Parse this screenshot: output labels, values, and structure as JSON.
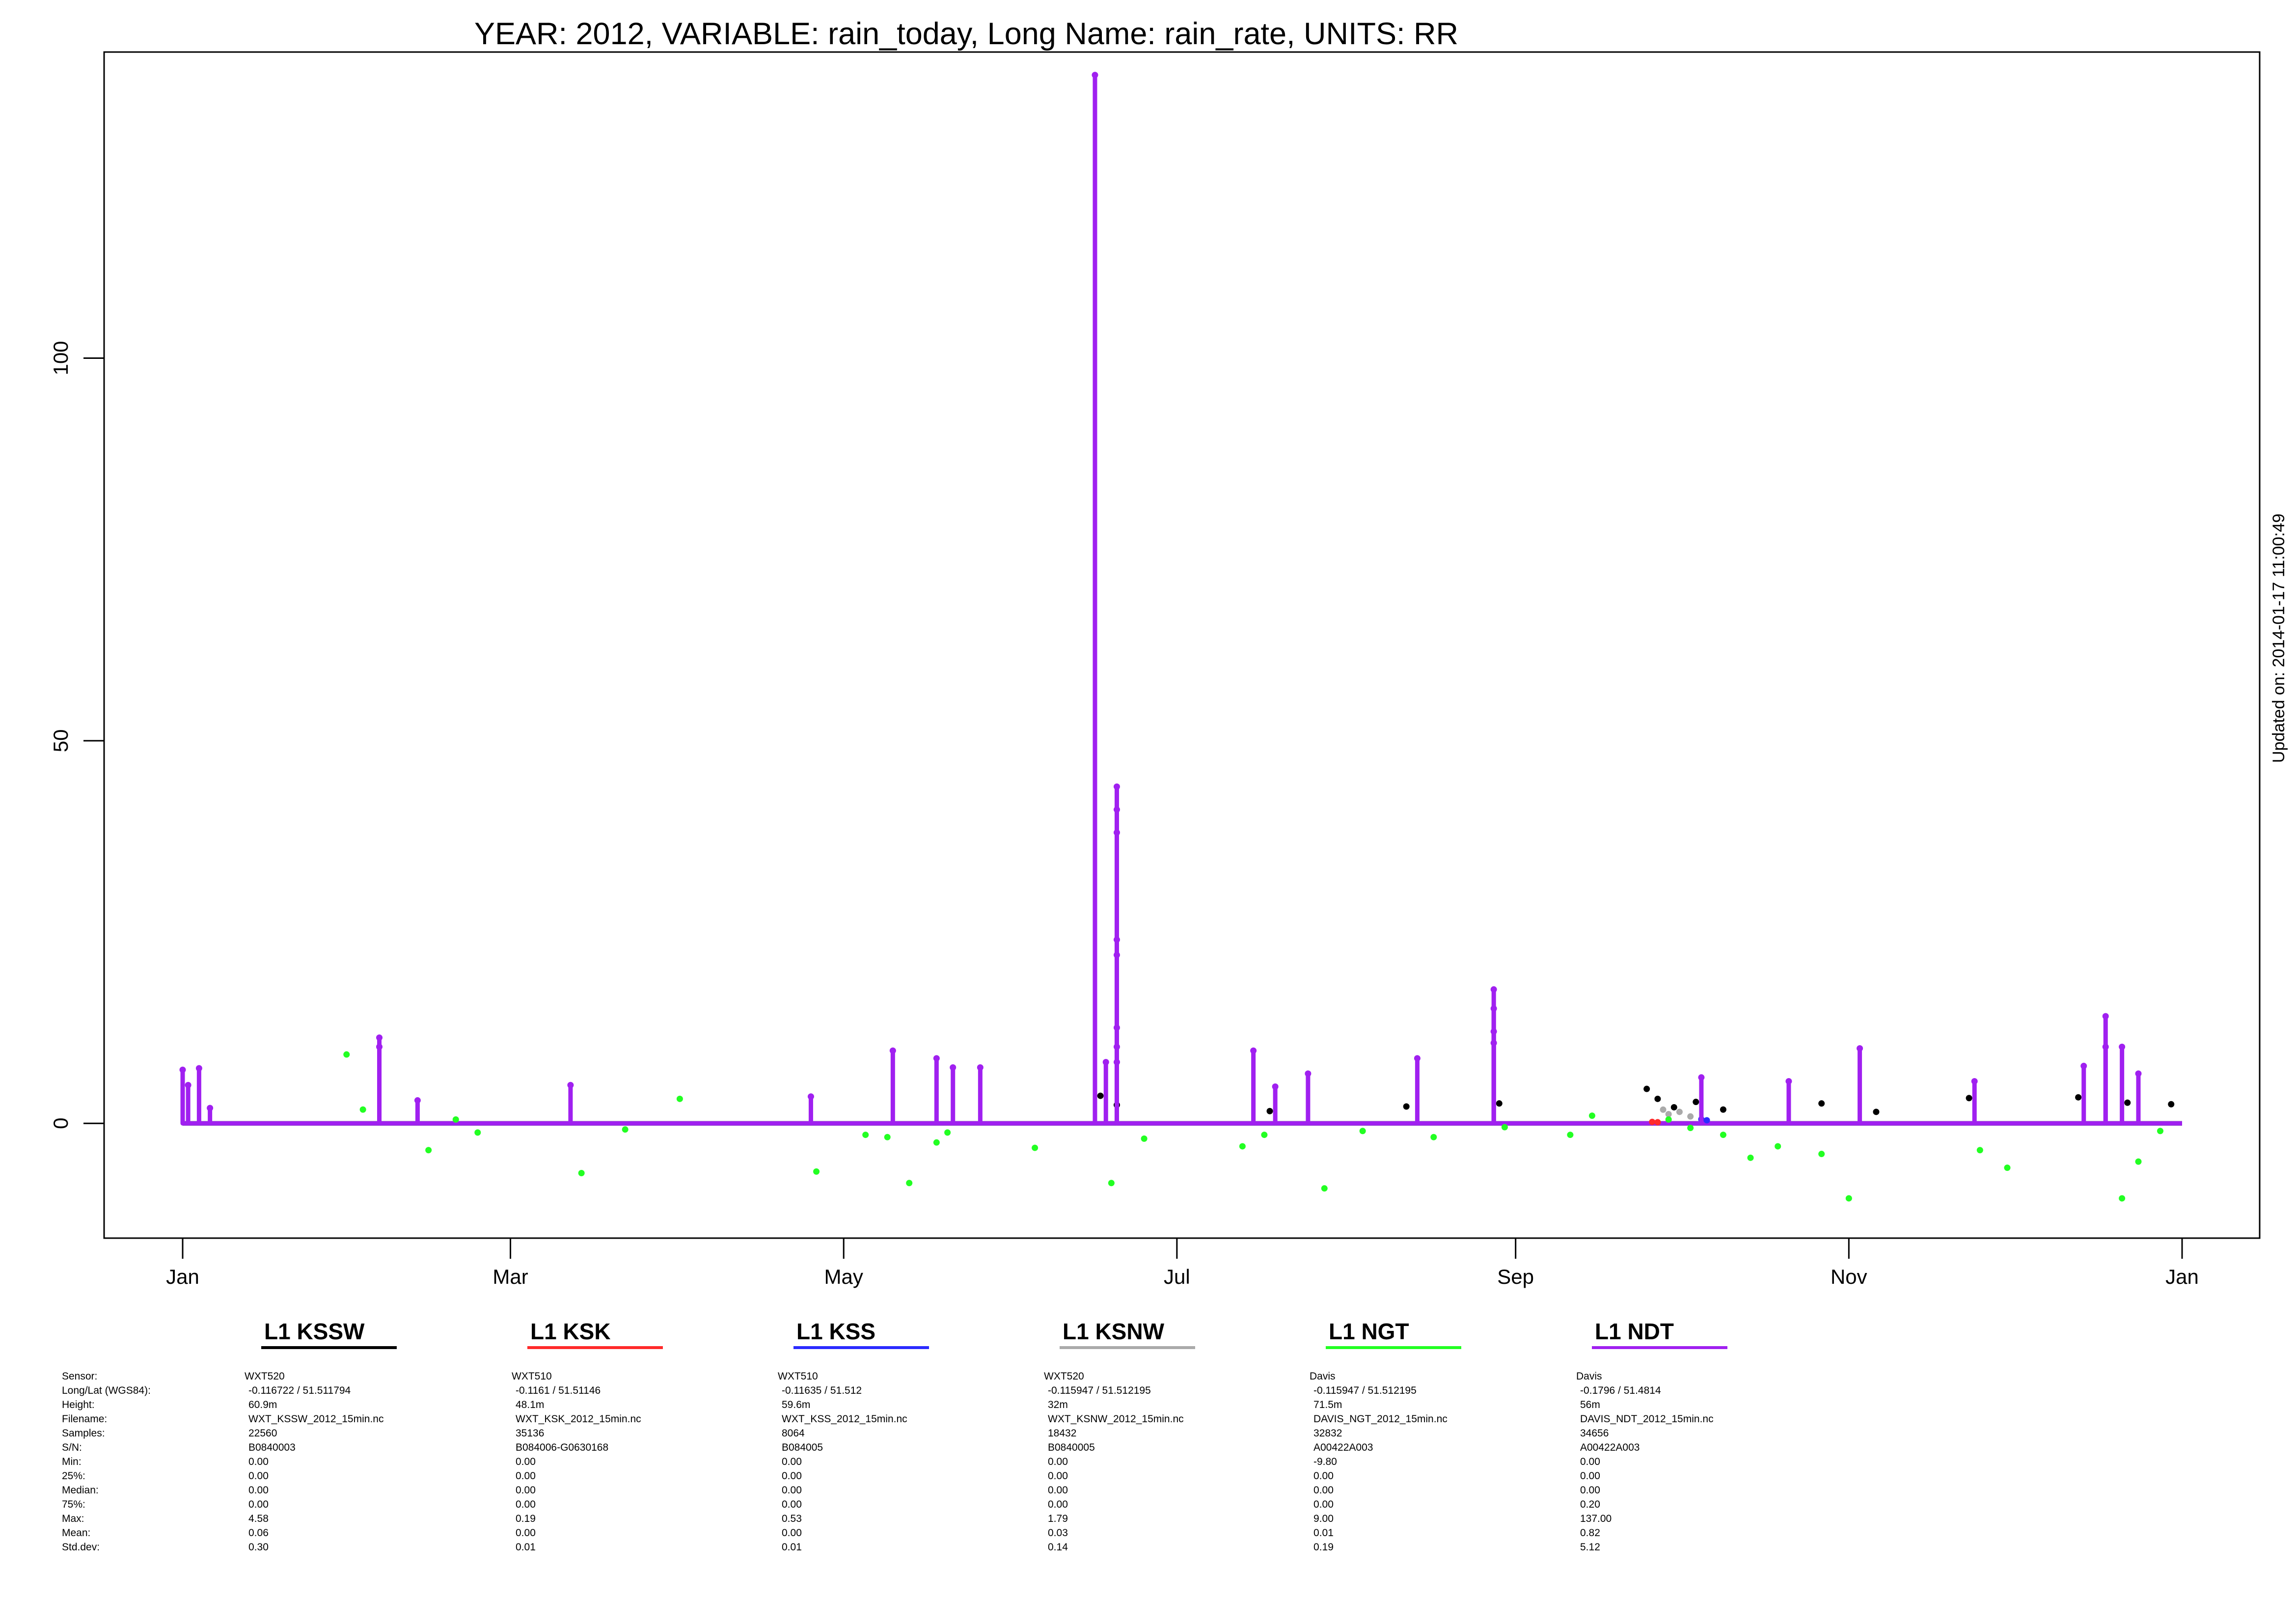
{
  "chart_data": {
    "type": "scatter",
    "title": "YEAR: 2012, VARIABLE: rain_today, Long Name: rain_rate, UNITS: RR",
    "xlabel": "",
    "ylabel": "",
    "xlim": [
      "2012-01-01",
      "2013-01-01"
    ],
    "ylim": [
      -15,
      140
    ],
    "x_ticks": [
      {
        "date": "2012-01-01",
        "label": "Jan"
      },
      {
        "date": "2012-03-01",
        "label": "Mar"
      },
      {
        "date": "2012-05-01",
        "label": "May"
      },
      {
        "date": "2012-07-01",
        "label": "Jul"
      },
      {
        "date": "2012-09-01",
        "label": "Sep"
      },
      {
        "date": "2012-11-01",
        "label": "Nov"
      },
      {
        "date": "2013-01-01",
        "label": "Jan"
      }
    ],
    "y_ticks": [
      0,
      50,
      100
    ],
    "grid": false,
    "updated": "Updated on: 2014-01-17 11:00:49",
    "series": [
      {
        "name": "L1 KSSW",
        "color": "#000000",
        "points": [
          [
            "2012-06-17",
            3.6
          ],
          [
            "2012-06-20",
            2.4
          ],
          [
            "2012-07-18",
            1.6
          ],
          [
            "2012-08-12",
            2.2
          ],
          [
            "2012-08-29",
            2.6
          ],
          [
            "2012-09-25",
            4.5
          ],
          [
            "2012-09-27",
            3.2
          ],
          [
            "2012-09-30",
            2.1
          ],
          [
            "2012-10-04",
            2.8
          ],
          [
            "2012-10-09",
            1.8
          ],
          [
            "2012-10-27",
            2.6
          ],
          [
            "2012-11-06",
            1.5
          ],
          [
            "2012-11-23",
            3.3
          ],
          [
            "2012-12-13",
            3.4
          ],
          [
            "2012-12-22",
            2.7
          ],
          [
            "2012-12-30",
            2.5
          ]
        ]
      },
      {
        "name": "L1 KSK",
        "color": "#ff2a2a",
        "points": [
          [
            "2012-09-26",
            0.19
          ],
          [
            "2012-09-27",
            0.15
          ]
        ]
      },
      {
        "name": "L1 KSS",
        "color": "#2b2bff",
        "points": [
          [
            "2012-10-05",
            0.53
          ],
          [
            "2012-10-06",
            0.4
          ]
        ]
      },
      {
        "name": "L1 KSNW",
        "color": "#aaaaaa",
        "points": [
          [
            "2012-09-28",
            1.79
          ],
          [
            "2012-09-29",
            1.2
          ],
          [
            "2012-10-01",
            1.5
          ],
          [
            "2012-10-03",
            0.9
          ]
        ]
      },
      {
        "name": "L1 NGT",
        "color": "#22ff22",
        "points": [
          [
            "2012-01-31",
            9.0
          ],
          [
            "2012-02-03",
            1.8
          ],
          [
            "2012-02-15",
            -3.5
          ],
          [
            "2012-02-20",
            0.5
          ],
          [
            "2012-02-24",
            -1.2
          ],
          [
            "2012-03-14",
            -6.5
          ],
          [
            "2012-03-22",
            -0.8
          ],
          [
            "2012-04-01",
            3.2
          ],
          [
            "2012-04-26",
            -6.3
          ],
          [
            "2012-05-05",
            -1.5
          ],
          [
            "2012-05-09",
            -1.8
          ],
          [
            "2012-05-13",
            -7.8
          ],
          [
            "2012-05-18",
            -2.5
          ],
          [
            "2012-05-20",
            -1.2
          ],
          [
            "2012-06-05",
            -3.2
          ],
          [
            "2012-06-19",
            -7.8
          ],
          [
            "2012-06-25",
            -2.0
          ],
          [
            "2012-07-13",
            -3.0
          ],
          [
            "2012-07-17",
            -1.5
          ],
          [
            "2012-07-28",
            -8.5
          ],
          [
            "2012-08-04",
            -1.0
          ],
          [
            "2012-08-17",
            -1.8
          ],
          [
            "2012-08-30",
            -0.5
          ],
          [
            "2012-09-11",
            -1.5
          ],
          [
            "2012-09-15",
            1.0
          ],
          [
            "2012-09-29",
            0.5
          ],
          [
            "2012-10-03",
            -0.6
          ],
          [
            "2012-10-09",
            -1.5
          ],
          [
            "2012-10-14",
            -4.5
          ],
          [
            "2012-10-19",
            -3.0
          ],
          [
            "2012-10-27",
            -4.0
          ],
          [
            "2012-11-01",
            -9.8
          ],
          [
            "2012-11-25",
            -3.5
          ],
          [
            "2012-11-30",
            -5.8
          ],
          [
            "2012-12-21",
            -9.8
          ],
          [
            "2012-12-24",
            -5.0
          ],
          [
            "2012-12-28",
            -1.0
          ]
        ]
      },
      {
        "name": "L1 NDT",
        "color": "#a020f0",
        "points": [
          [
            "2012-01-01",
            7.0
          ],
          [
            "2012-01-02",
            5.0
          ],
          [
            "2012-01-04",
            7.2
          ],
          [
            "2012-01-06",
            2.0
          ],
          [
            "2012-02-06",
            11.2
          ],
          [
            "2012-02-06",
            10.0
          ],
          [
            "2012-02-13",
            3.0
          ],
          [
            "2012-03-12",
            5.0
          ],
          [
            "2012-04-25",
            3.5
          ],
          [
            "2012-05-10",
            9.5
          ],
          [
            "2012-05-18",
            8.5
          ],
          [
            "2012-05-21",
            7.3
          ],
          [
            "2012-05-26",
            7.3
          ],
          [
            "2012-06-16",
            137.0
          ],
          [
            "2012-06-18",
            8.0
          ],
          [
            "2012-06-20",
            8.0
          ],
          [
            "2012-06-20",
            44.0
          ],
          [
            "2012-06-20",
            41.0
          ],
          [
            "2012-06-20",
            38.0
          ],
          [
            "2012-06-20",
            24.0
          ],
          [
            "2012-06-20",
            22.0
          ],
          [
            "2012-06-20",
            12.5
          ],
          [
            "2012-06-20",
            10.0
          ],
          [
            "2012-07-15",
            9.5
          ],
          [
            "2012-07-19",
            4.8
          ],
          [
            "2012-07-25",
            6.5
          ],
          [
            "2012-08-14",
            8.5
          ],
          [
            "2012-08-28",
            17.5
          ],
          [
            "2012-08-28",
            15.0
          ],
          [
            "2012-08-28",
            12.0
          ],
          [
            "2012-08-28",
            10.5
          ],
          [
            "2012-10-05",
            6.0
          ],
          [
            "2012-10-21",
            5.5
          ],
          [
            "2012-11-03",
            9.8
          ],
          [
            "2012-11-24",
            5.5
          ],
          [
            "2012-12-14",
            7.5
          ],
          [
            "2012-12-18",
            14.0
          ],
          [
            "2012-12-18",
            10.0
          ],
          [
            "2012-12-21",
            10.0
          ],
          [
            "2012-12-24",
            6.5
          ]
        ]
      }
    ]
  },
  "legend": [
    {
      "name": "L1 KSSW",
      "color": "#000000"
    },
    {
      "name": "L1 KSK",
      "color": "#ff2a2a"
    },
    {
      "name": "L1 KSS",
      "color": "#2b2bff"
    },
    {
      "name": "L1 KSNW",
      "color": "#aaaaaa"
    },
    {
      "name": "L1 NGT",
      "color": "#22ff22"
    },
    {
      "name": "L1 NDT",
      "color": "#a020f0"
    }
  ],
  "info_labels": [
    "Sensor:",
    "Long/Lat (WGS84):",
    "Height:",
    "Filename:",
    "Samples:",
    "S/N:",
    "Min:",
    "25%:",
    "Median:",
    "75%:",
    "Max:",
    "Mean:",
    "Std.dev:"
  ],
  "stations": [
    {
      "sensor": "WXT520",
      "longlat": " -0.116722 / 51.511794",
      "height": "60.9m",
      "filename": "WXT_KSSW_2012_15min.nc",
      "samples": "22560",
      "sn": "B0840003",
      "min": "0.00",
      "p25": "0.00",
      "median": "0.00",
      "p75": "0.00",
      "max": "4.58",
      "mean": "0.06",
      "std": "0.30"
    },
    {
      "sensor": "WXT510",
      "longlat": " -0.1161 / 51.51146",
      "height": "48.1m",
      "filename": "WXT_KSK_2012_15min.nc",
      "samples": "35136",
      "sn": "B084006-G0630168",
      "min": "0.00",
      "p25": "0.00",
      "median": "0.00",
      "p75": "0.00",
      "max": "0.19",
      "mean": "0.00",
      "std": "0.01"
    },
    {
      "sensor": "WXT510",
      "longlat": " -0.11635 / 51.512",
      "height": "59.6m",
      "filename": "WXT_KSS_2012_15min.nc",
      "samples": "8064",
      "sn": "B084005",
      "min": "0.00",
      "p25": "0.00",
      "median": "0.00",
      "p75": "0.00",
      "max": "0.53",
      "mean": "0.00",
      "std": "0.01"
    },
    {
      "sensor": "WXT520",
      "longlat": " -0.115947 / 51.512195",
      "height": "32m",
      "filename": "WXT_KSNW_2012_15min.nc",
      "samples": "18432",
      "sn": "B0840005",
      "min": "0.00",
      "p25": "0.00",
      "median": "0.00",
      "p75": "0.00",
      "max": "1.79",
      "mean": "0.03",
      "std": "0.14"
    },
    {
      "sensor": "Davis",
      "longlat": " -0.115947 / 51.512195",
      "height": "71.5m",
      "filename": "DAVIS_NGT_2012_15min.nc",
      "samples": "32832",
      "sn": "A00422A003",
      "min": "-9.80",
      "p25": "0.00",
      "median": "0.00",
      "p75": "0.00",
      "max": "9.00",
      "mean": "0.01",
      "std": "0.19"
    },
    {
      "sensor": "Davis",
      "longlat": " -0.1796 / 51.4814",
      "height": "56m",
      "filename": "DAVIS_NDT_2012_15min.nc",
      "samples": "34656",
      "sn": "A00422A003",
      "min": "0.00",
      "p25": "0.00",
      "median": "0.00",
      "p75": "0.20",
      "max": "137.00",
      "mean": "0.82",
      "std": "5.12"
    }
  ]
}
